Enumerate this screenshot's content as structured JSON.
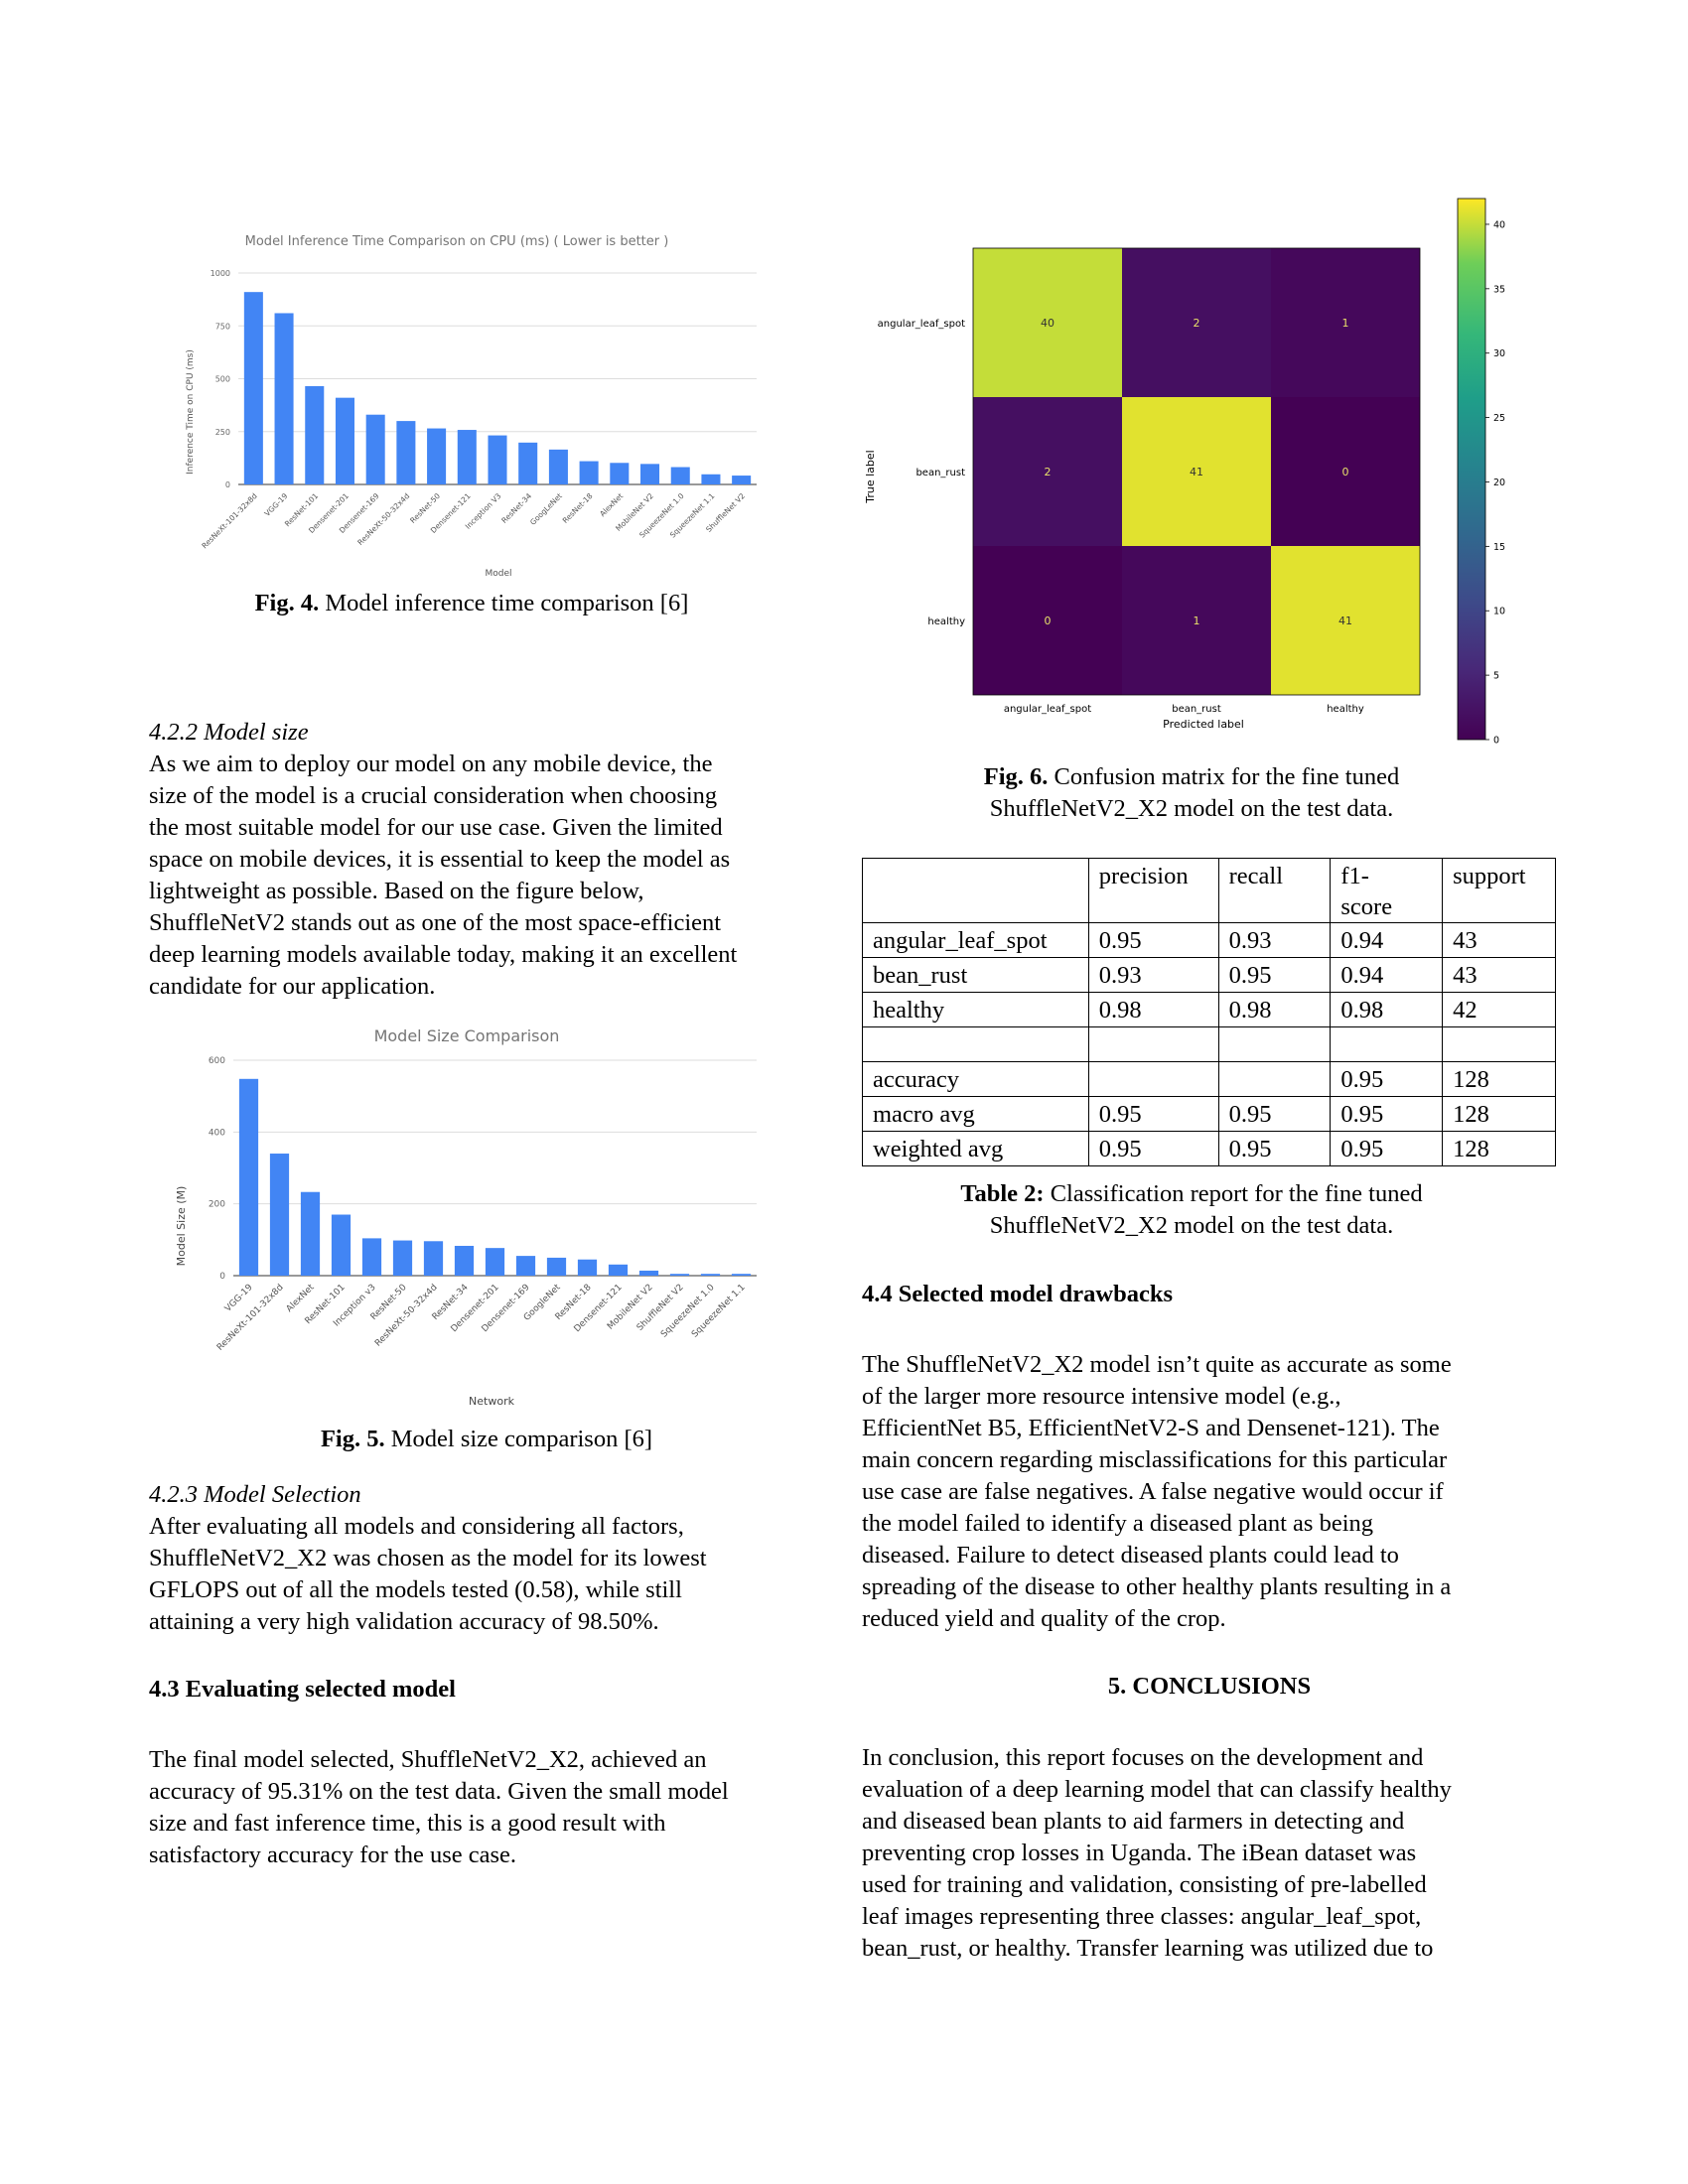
{
  "fig4": {
    "caption_num": "Fig. 4.",
    "caption_text": " Model inference time comparison [6]"
  },
  "fig5": {
    "caption_num": "Fig. 5.",
    "caption_text": " Model size comparison [6]"
  },
  "fig6": {
    "caption_num": "Fig. 6.",
    "caption_text": " Confusion matrix for the fine tuned",
    "caption_line2": "ShuffleNetV2_X2 model on the test data."
  },
  "sec_422": {
    "heading": "4.2.2 Model size",
    "lines": [
      "As we aim to deploy our model on any mobile device, the",
      "size of the model is a crucial consideration when choosing",
      "the most suitable model for our use case. Given the limited",
      "space on mobile devices, it is essential to keep the model as",
      "lightweight as possible. Based on the figure below,",
      "ShuffleNetV2 stands out as one of the most space-efficient",
      "deep learning models available today, making it an excellent",
      "candidate for our application."
    ]
  },
  "sec_423": {
    "heading": "4.2.3 Model Selection",
    "lines": [
      "After evaluating all models and considering all factors,",
      "ShuffleNetV2_X2 was chosen as the model for its lowest",
      "GFLOPS out of all the models tested (0.58), while still",
      "attaining a very high validation accuracy of 98.50%."
    ]
  },
  "sec_43": {
    "heading": "4.3 Evaluating selected model",
    "lines": [
      "The final model selected, ShuffleNetV2_X2, achieved an",
      "accuracy of 95.31% on the test data. Given the small model",
      "size and fast inference time, this is a good result with",
      "satisfactory accuracy for the use case."
    ]
  },
  "sec_44": {
    "heading": "4.4 Selected model drawbacks",
    "lines": [
      "The ShuffleNetV2_X2 model isn’t quite as accurate as some",
      "of the larger more resource intensive model (e.g.,",
      "EfficientNet B5, EfficientNetV2-S and Densenet-121). The",
      "main concern regarding misclassifications for this particular",
      "use case are false negatives. A false negative would occur if",
      "the model failed to identify a diseased plant as being",
      "diseased. Failure to detect diseased plants could lead to",
      "spreading of the disease to other healthy plants resulting in a",
      "reduced yield and quality of the crop."
    ]
  },
  "sec_5": {
    "heading": "5. CONCLUSIONS",
    "lines": [
      "In conclusion, this report focuses on the development and",
      "evaluation of a deep learning model that can classify healthy",
      "and diseased bean plants to aid farmers in detecting and",
      "preventing crop losses in Uganda. The iBean dataset was",
      "used for training and validation, consisting of pre-labelled",
      "leaf images representing three classes: angular_leaf_spot,",
      "bean_rust, or healthy. Transfer learning was utilized due to"
    ]
  },
  "table2": {
    "caption_num": "Table 2:",
    "caption_text": " Classification report for the fine tuned",
    "caption_line2": "ShuffleNetV2_X2 model on the test data.",
    "header": [
      "",
      "precision",
      "recall",
      "f1-\nscore",
      "support"
    ],
    "rows": [
      [
        "angular_leaf_spot",
        "0.95",
        "0.93",
        "0.94",
        "43"
      ],
      [
        "bean_rust",
        "0.93",
        "0.95",
        "0.94",
        "43"
      ],
      [
        "healthy",
        "0.98",
        "0.98",
        "0.98",
        "42"
      ],
      [
        "",
        "",
        "",
        "",
        ""
      ],
      [
        "accuracy",
        "",
        "",
        "0.95",
        "128"
      ],
      [
        "macro avg",
        "0.95",
        "0.95",
        "0.95",
        "128"
      ],
      [
        "weighted avg",
        "0.95",
        "0.95",
        "0.95",
        "128"
      ]
    ]
  },
  "chart_data": [
    {
      "type": "bar",
      "title": "Model Inference Time Comparison on CPU (ms) ( Lower is better )",
      "xlabel": "Model",
      "ylabel": "Inference Time on CPU (ms)",
      "ylim": [
        0,
        1000
      ],
      "yticks": [
        "0",
        "250",
        "500",
        "750",
        "1000"
      ],
      "categories": [
        "ResNeXt-101-32x8d",
        "VGG-19",
        "ResNet-101",
        "Densenet-201",
        "Densenet-169",
        "ResNeXt-50-32x4d",
        "ResNet-50",
        "Densenet-121",
        "Inception V3",
        "ResNet-34",
        "GoogLeNet",
        "ResNet-18",
        "AlexNet",
        "MobileNet V2",
        "SqueezeNet 1.0",
        "SqueezeNet 1.1",
        "ShuffleNet V2"
      ],
      "values": [
        910,
        810,
        465,
        410,
        330,
        300,
        265,
        258,
        232,
        198,
        165,
        110,
        102,
        97,
        82,
        48,
        42
      ],
      "color": "#4285F4",
      "grid": true
    },
    {
      "type": "bar",
      "title": "Model Size Comparison",
      "xlabel": "Network",
      "ylabel": "Model Size (M)",
      "ylim": [
        0,
        600
      ],
      "yticks": [
        "0",
        "200",
        "400",
        "600"
      ],
      "categories": [
        "VGG-19",
        "ResNeXt-101-32x8d",
        "AlexNet",
        "ResNet-101",
        "Inception v3",
        "ResNet-50",
        "ResNeXt-50-32x4d",
        "ResNet-34",
        "Densenet-201",
        "Densenet-169",
        "GoogleNet",
        "ResNet-18",
        "Densenet-121",
        "MobileNet V2",
        "ShuffleNet V2",
        "SqueezeNet 1.0",
        "SqueezeNet 1.1"
      ],
      "values": [
        548,
        340,
        233,
        170,
        104,
        98,
        96,
        83,
        77,
        55,
        50,
        45,
        31,
        14,
        5,
        5,
        5
      ],
      "color": "#4285F4",
      "grid": true
    },
    {
      "type": "heatmap",
      "xlabel": "Predicted label",
      "ylabel": "True label",
      "x_categories": [
        "angular_leaf_spot",
        "bean_rust",
        "healthy"
      ],
      "y_categories": [
        "angular_leaf_spot",
        "bean_rust",
        "healthy"
      ],
      "values": [
        [
          40,
          2,
          1
        ],
        [
          2,
          41,
          0
        ],
        [
          0,
          1,
          41
        ]
      ],
      "colorbar_range": [
        0,
        42
      ],
      "colorbar_ticks": [
        "0",
        "5",
        "10",
        "15",
        "20",
        "25",
        "30",
        "35",
        "40"
      ],
      "colormap": "viridis"
    }
  ]
}
